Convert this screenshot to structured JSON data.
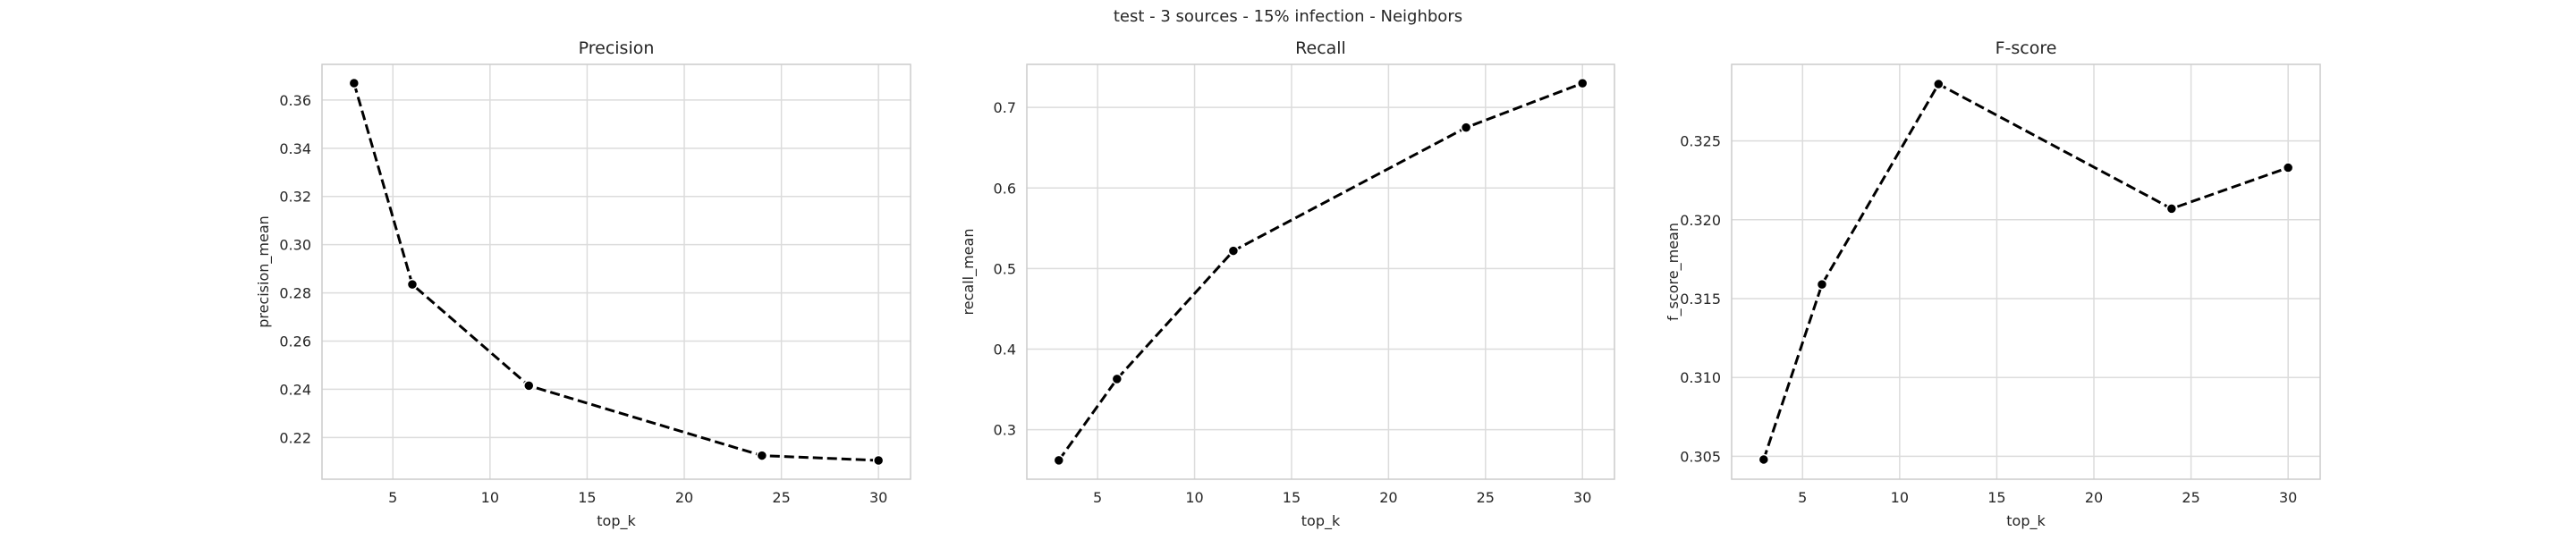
{
  "figure": {
    "suptitle": "test - 3 sources - 15% infection - Neighbors"
  },
  "chart_data": [
    {
      "type": "line",
      "title": "Precision",
      "xlabel": "top_k",
      "ylabel": "precision_mean",
      "x": [
        3,
        6,
        12,
        24,
        30
      ],
      "series": [
        {
          "values": [
            0.367,
            0.2835,
            0.2415,
            0.2125,
            0.2105
          ]
        }
      ],
      "xlim": [
        1.35,
        31.65
      ],
      "ylim": [
        0.2027,
        0.3748
      ],
      "xticks": [
        5,
        10,
        15,
        20,
        25,
        30
      ],
      "yticks": [
        0.22,
        0.24,
        0.26,
        0.28,
        0.3,
        0.32,
        0.34,
        0.36
      ],
      "ytick_labels": [
        "0.22",
        "0.24",
        "0.26",
        "0.28",
        "0.30",
        "0.32",
        "0.34",
        "0.36"
      ],
      "grid": true,
      "line_style": "dashed",
      "marker": "circle",
      "color": "#000000"
    },
    {
      "type": "line",
      "title": "Recall",
      "xlabel": "top_k",
      "ylabel": "recall_mean",
      "x": [
        3,
        6,
        12,
        24,
        30
      ],
      "series": [
        {
          "values": [
            0.262,
            0.363,
            0.522,
            0.675,
            0.73
          ]
        }
      ],
      "xlim": [
        1.35,
        31.65
      ],
      "ylim": [
        0.2386,
        0.7534
      ],
      "xticks": [
        5,
        10,
        15,
        20,
        25,
        30
      ],
      "yticks": [
        0.3,
        0.4,
        0.5,
        0.6,
        0.7
      ],
      "ytick_labels": [
        "0.3",
        "0.4",
        "0.5",
        "0.6",
        "0.7"
      ],
      "grid": true,
      "line_style": "dashed",
      "marker": "circle",
      "color": "#000000"
    },
    {
      "type": "line",
      "title": "F-score",
      "xlabel": "top_k",
      "ylabel": "f_score_mean",
      "x": [
        3,
        6,
        12,
        24,
        30
      ],
      "series": [
        {
          "values": [
            0.3048,
            0.3159,
            0.3286,
            0.3207,
            0.3233
          ]
        }
      ],
      "xlim": [
        1.35,
        31.65
      ],
      "ylim": [
        0.30355,
        0.32985
      ],
      "xticks": [
        5,
        10,
        15,
        20,
        25,
        30
      ],
      "yticks": [
        0.305,
        0.31,
        0.315,
        0.32,
        0.325
      ],
      "ytick_labels": [
        "0.305",
        "0.310",
        "0.315",
        "0.320",
        "0.325"
      ],
      "grid": true,
      "line_style": "dashed",
      "marker": "circle",
      "color": "#000000"
    }
  ]
}
